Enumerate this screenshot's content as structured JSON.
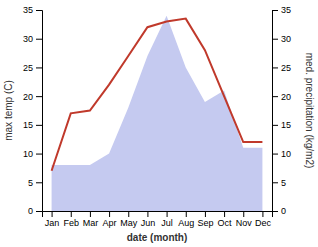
{
  "chart_data": {
    "type": "line",
    "xlabel": "date (month)",
    "ylabel": "max temp (C)",
    "y2label": "med. precipitation (kg/m2)",
    "categories": [
      "Jan",
      "Feb",
      "Mar",
      "Apr",
      "May",
      "Jun",
      "Jul",
      "Aug",
      "Sep",
      "Oct",
      "Nov",
      "Dec"
    ],
    "series": [
      {
        "type": "line",
        "color": "#c0392b",
        "values": [
          7,
          17,
          17.5,
          22,
          27,
          32,
          33,
          33.5,
          28,
          20,
          12,
          12
        ]
      },
      {
        "type": "area",
        "axis": "y2",
        "color": "#c5caf0",
        "values": [
          8,
          8,
          8,
          10,
          18,
          27,
          34,
          25,
          19,
          21,
          11,
          11
        ]
      }
    ],
    "ylim": [
      0,
      35
    ],
    "yticks": [
      0,
      5,
      10,
      15,
      20,
      25,
      30,
      35
    ],
    "y2lim": [
      0,
      35
    ],
    "y2ticks": [
      0,
      5,
      10,
      15,
      20,
      25,
      30,
      35
    ],
    "grid": false
  }
}
